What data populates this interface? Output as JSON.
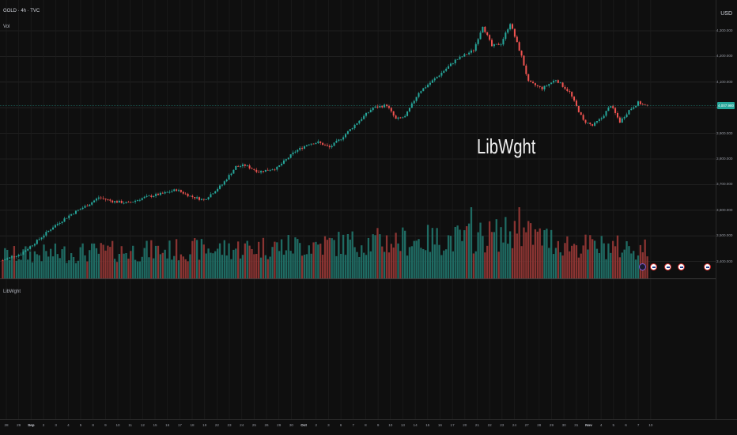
{
  "header": {
    "title": "GOLD · 4h · TVC",
    "volume_label": "Vol"
  },
  "currency": "USD",
  "last_price_tag": "4,007.980",
  "watermark": "LibWght",
  "lower_pane_label": "LibWght",
  "colors": {
    "up": "#26a69a",
    "down": "#ef5350",
    "background": "#0f0f0f",
    "grid": "#262626"
  },
  "y_axis_ticks": [
    "4,300.000",
    "4,200.000",
    "4,100.000",
    "4,000.000",
    "3,900.000",
    "3,800.000",
    "3,700.000",
    "3,600.000",
    "3,500.000",
    "3,400.000"
  ],
  "x_axis_ticks": [
    {
      "label": "28",
      "bold": false
    },
    {
      "label": "29",
      "bold": false
    },
    {
      "label": "Sep",
      "bold": true
    },
    {
      "label": "2",
      "bold": false
    },
    {
      "label": "3",
      "bold": false
    },
    {
      "label": "4",
      "bold": false
    },
    {
      "label": "5",
      "bold": false
    },
    {
      "label": "8",
      "bold": false
    },
    {
      "label": "9",
      "bold": false
    },
    {
      "label": "10",
      "bold": false
    },
    {
      "label": "11",
      "bold": false
    },
    {
      "label": "12",
      "bold": false
    },
    {
      "label": "15",
      "bold": false
    },
    {
      "label": "16",
      "bold": false
    },
    {
      "label": "17",
      "bold": false
    },
    {
      "label": "18",
      "bold": false
    },
    {
      "label": "19",
      "bold": false
    },
    {
      "label": "22",
      "bold": false
    },
    {
      "label": "23",
      "bold": false
    },
    {
      "label": "24",
      "bold": false
    },
    {
      "label": "25",
      "bold": false
    },
    {
      "label": "26",
      "bold": false
    },
    {
      "label": "29",
      "bold": false
    },
    {
      "label": "30",
      "bold": false
    },
    {
      "label": "Oct",
      "bold": true
    },
    {
      "label": "2",
      "bold": false
    },
    {
      "label": "3",
      "bold": false
    },
    {
      "label": "6",
      "bold": false
    },
    {
      "label": "7",
      "bold": false
    },
    {
      "label": "8",
      "bold": false
    },
    {
      "label": "9",
      "bold": false
    },
    {
      "label": "10",
      "bold": false
    },
    {
      "label": "13",
      "bold": false
    },
    {
      "label": "14",
      "bold": false
    },
    {
      "label": "15",
      "bold": false
    },
    {
      "label": "16",
      "bold": false
    },
    {
      "label": "17",
      "bold": false
    },
    {
      "label": "20",
      "bold": false
    },
    {
      "label": "21",
      "bold": false
    },
    {
      "label": "22",
      "bold": false
    },
    {
      "label": "23",
      "bold": false
    },
    {
      "label": "24",
      "bold": false
    },
    {
      "label": "27",
      "bold": false
    },
    {
      "label": "28",
      "bold": false
    },
    {
      "label": "29",
      "bold": false
    },
    {
      "label": "30",
      "bold": false
    },
    {
      "label": "31",
      "bold": false
    },
    {
      "label": "Nov",
      "bold": true
    },
    {
      "label": "4",
      "bold": false
    },
    {
      "label": "5",
      "bold": false
    },
    {
      "label": "6",
      "bold": false
    },
    {
      "label": "7",
      "bold": false
    },
    {
      "label": "10",
      "bold": false
    }
  ],
  "chart_data": {
    "type": "candlestick",
    "symbol": "GOLD",
    "interval": "4h",
    "price_axis": [
      3400,
      4300
    ],
    "price_keypoints": [
      {
        "bar": 0,
        "price": 3405
      },
      {
        "bar": 8,
        "price": 3430
      },
      {
        "bar": 15,
        "price": 3480
      },
      {
        "bar": 22,
        "price": 3535
      },
      {
        "bar": 30,
        "price": 3585
      },
      {
        "bar": 38,
        "price": 3625
      },
      {
        "bar": 42,
        "price": 3650
      },
      {
        "bar": 48,
        "price": 3635
      },
      {
        "bar": 55,
        "price": 3628
      },
      {
        "bar": 62,
        "price": 3650
      },
      {
        "bar": 70,
        "price": 3665
      },
      {
        "bar": 76,
        "price": 3680
      },
      {
        "bar": 82,
        "price": 3655
      },
      {
        "bar": 88,
        "price": 3640
      },
      {
        "bar": 96,
        "price": 3700
      },
      {
        "bar": 102,
        "price": 3770
      },
      {
        "bar": 106,
        "price": 3775
      },
      {
        "bar": 112,
        "price": 3750
      },
      {
        "bar": 120,
        "price": 3765
      },
      {
        "bar": 128,
        "price": 3830
      },
      {
        "bar": 134,
        "price": 3860
      },
      {
        "bar": 138,
        "price": 3865
      },
      {
        "bar": 143,
        "price": 3845
      },
      {
        "bar": 148,
        "price": 3880
      },
      {
        "bar": 156,
        "price": 3950
      },
      {
        "bar": 162,
        "price": 4000
      },
      {
        "bar": 168,
        "price": 4010
      },
      {
        "bar": 172,
        "price": 3955
      },
      {
        "bar": 176,
        "price": 3965
      },
      {
        "bar": 182,
        "price": 4060
      },
      {
        "bar": 190,
        "price": 4120
      },
      {
        "bar": 198,
        "price": 4185
      },
      {
        "bar": 206,
        "price": 4225
      },
      {
        "bar": 210,
        "price": 4320
      },
      {
        "bar": 214,
        "price": 4240
      },
      {
        "bar": 218,
        "price": 4250
      },
      {
        "bar": 222,
        "price": 4330
      },
      {
        "bar": 227,
        "price": 4200
      },
      {
        "bar": 230,
        "price": 4100
      },
      {
        "bar": 236,
        "price": 4075
      },
      {
        "bar": 242,
        "price": 4110
      },
      {
        "bar": 248,
        "price": 4060
      },
      {
        "bar": 254,
        "price": 3950
      },
      {
        "bar": 258,
        "price": 3930
      },
      {
        "bar": 262,
        "price": 3960
      },
      {
        "bar": 266,
        "price": 4010
      },
      {
        "bar": 270,
        "price": 3945
      },
      {
        "bar": 274,
        "price": 3990
      },
      {
        "bar": 278,
        "price": 4020
      },
      {
        "bar": 282,
        "price": 4005
      }
    ],
    "bar_count": 283,
    "volume_keypoints": [
      {
        "bar": 0,
        "vol": 0.35
      },
      {
        "bar": 40,
        "vol": 0.4
      },
      {
        "bar": 100,
        "vol": 0.45
      },
      {
        "bar": 160,
        "vol": 0.55
      },
      {
        "bar": 200,
        "vol": 0.6
      },
      {
        "bar": 225,
        "vol": 0.7
      },
      {
        "bar": 250,
        "vol": 0.5
      },
      {
        "bar": 282,
        "vol": 0.45
      }
    ],
    "last_price": 4007.98,
    "events": [
      "calendar-dot",
      "us-flag",
      "us-flag",
      "us-flag",
      "us-flag"
    ]
  }
}
